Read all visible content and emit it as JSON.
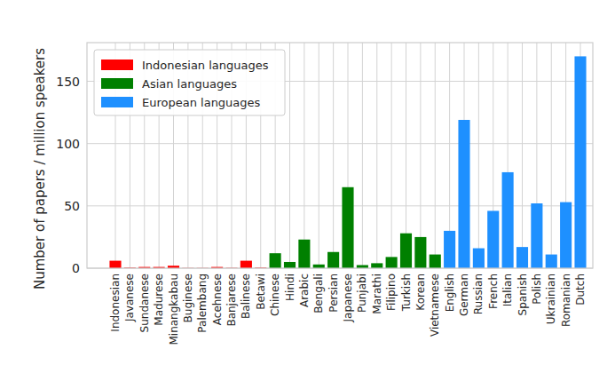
{
  "chart_data": {
    "type": "bar",
    "y_label": "Number of papers / million speakers",
    "categories": [
      "Indonesian",
      "Javanese",
      "Sundanese",
      "Madurese",
      "Minangkabau",
      "Buginese",
      "Palembang",
      "Acehnese",
      "Banjarese",
      "Balinese",
      "Betawi",
      "Chinese",
      "Hindi",
      "Arabic",
      "Bengali",
      "Persian",
      "Japanese",
      "Punjabi",
      "Marathi",
      "Filipino",
      "Turkish",
      "Korean",
      "Vietnamese",
      "English",
      "German",
      "Russian",
      "French",
      "Italian",
      "Spanish",
      "Polish",
      "Ukrainian",
      "Romanian",
      "Dutch"
    ],
    "series": [
      {
        "name": "Indonesian languages",
        "color": "#ff0000",
        "values": [
          6,
          0.5,
          1,
          1,
          2,
          0.2,
          0.2,
          1,
          0.3,
          6,
          0.5,
          null,
          null,
          null,
          null,
          null,
          null,
          null,
          null,
          null,
          null,
          null,
          null,
          null,
          null,
          null,
          null,
          null,
          null,
          null,
          null,
          null,
          null
        ]
      },
      {
        "name": "Asian languages",
        "color": "#008000",
        "values": [
          null,
          null,
          null,
          null,
          null,
          null,
          null,
          null,
          null,
          null,
          null,
          12,
          5,
          23,
          3,
          13,
          65,
          2.5,
          4,
          9,
          28,
          25,
          11,
          null,
          null,
          null,
          null,
          null,
          null,
          null,
          null,
          null,
          null
        ]
      },
      {
        "name": "European languages",
        "color": "#1e90ff",
        "values": [
          null,
          null,
          null,
          null,
          null,
          null,
          null,
          null,
          null,
          null,
          null,
          null,
          null,
          null,
          null,
          null,
          null,
          null,
          null,
          null,
          null,
          null,
          null,
          30,
          119,
          16,
          46,
          77,
          17,
          52,
          11,
          53,
          170
        ]
      }
    ],
    "ylim": [
      0,
      181
    ],
    "yticks": [
      0,
      50,
      100,
      150
    ],
    "grid": true,
    "legend": "upper left"
  }
}
